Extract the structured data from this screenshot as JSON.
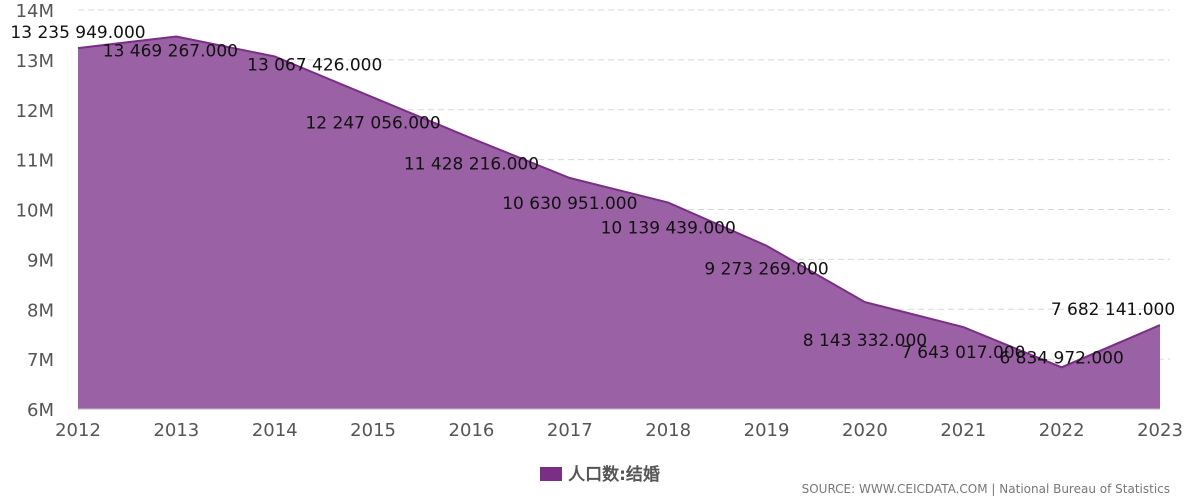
{
  "chart_data": {
    "type": "area",
    "x": [
      "2012",
      "2013",
      "2014",
      "2015",
      "2016",
      "2017",
      "2018",
      "2019",
      "2020",
      "2021",
      "2022",
      "2023"
    ],
    "series": [
      {
        "name": "人口数:结婚",
        "values": [
          13235949,
          13469267,
          13067426,
          12247056,
          11428216,
          10630951,
          10139439,
          9273269,
          8143332,
          7643017,
          6834972,
          7682141
        ],
        "labels": [
          "13 235 949.000",
          "13 469 267.000",
          "13 067 426.000",
          "12 247 056.000",
          "11 428 216.000",
          "10 630 951.000",
          "10 139 439.000",
          "9 273 269.000",
          "8 143 332.000",
          "7 643 017.000",
          "6 834 972.000",
          "7 682 141.000"
        ]
      }
    ],
    "y_ticks": [
      {
        "value": 6000000,
        "label": "6M"
      },
      {
        "value": 7000000,
        "label": "7M"
      },
      {
        "value": 8000000,
        "label": "8M"
      },
      {
        "value": 9000000,
        "label": "9M"
      },
      {
        "value": 10000000,
        "label": "10M"
      },
      {
        "value": 11000000,
        "label": "11M"
      },
      {
        "value": 12000000,
        "label": "12M"
      },
      {
        "value": 13000000,
        "label": "13M"
      },
      {
        "value": 14000000,
        "label": "14M"
      }
    ],
    "ylim": [
      6000000,
      14000000
    ],
    "grid": true,
    "legend_position": "bottom",
    "colors": {
      "fill": "#9a62a4",
      "line": "#7a2e86",
      "swatch": "#7a2e86",
      "grid": "#d8d8d8"
    }
  },
  "source_text": "SOURCE: WWW.CEICDATA.COM | National Bureau of Statistics"
}
